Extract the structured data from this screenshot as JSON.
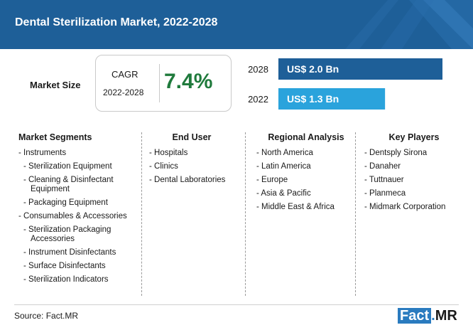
{
  "header": {
    "title": "Dental Sterilization Market, 2022-2028"
  },
  "market_size": {
    "label": "Market Size"
  },
  "cagr": {
    "label": "CAGR",
    "period": "2022-2028",
    "value": "7.4%"
  },
  "chart_data": {
    "type": "bar",
    "orientation": "horizontal",
    "categories": [
      "2028",
      "2022"
    ],
    "values": [
      2.0,
      1.3
    ],
    "value_labels": [
      "US$ 2.0 Bn",
      "US$ 1.3 Bn"
    ],
    "colors": [
      "#1e5f98",
      "#2aa3dc"
    ],
    "unit": "US$ Bn",
    "xlim": [
      0,
      2.0
    ]
  },
  "segments": {
    "heading": "Market Segments",
    "items": [
      {
        "text": "- Instruments",
        "sub": false
      },
      {
        "text": "- Sterilization Equipment",
        "sub": true
      },
      {
        "text": "- Cleaning & Disinfectant Equipment",
        "sub": true
      },
      {
        "text": "- Packaging Equipment",
        "sub": true
      },
      {
        "text": "- Consumables & Accessories",
        "sub": false
      },
      {
        "text": "- Sterilization Packaging Accessories",
        "sub": true
      },
      {
        "text": "- Instrument Disinfectants",
        "sub": true
      },
      {
        "text": "- Surface Disinfectants",
        "sub": true
      },
      {
        "text": "- Sterilization Indicators",
        "sub": true
      }
    ]
  },
  "end_user": {
    "heading": "End User",
    "items": [
      "- Hospitals",
      "- Clinics",
      "- Dental Laboratories"
    ]
  },
  "regional": {
    "heading": "Regional Analysis",
    "items": [
      "- North America",
      "- Latin America",
      "- Europe",
      "- Asia & Pacific",
      "- Middle East & Africa"
    ]
  },
  "key_players": {
    "heading": "Key Players",
    "items": [
      "- Dentsply Sirona",
      "- Danaher",
      "- Tuttnauer",
      "- Planmeca",
      "- Midmark Corporation"
    ]
  },
  "footer": {
    "source": "Source: Fact.MR",
    "logo_fact": "Fact",
    "logo_dot": ".",
    "logo_mr": "MR"
  }
}
